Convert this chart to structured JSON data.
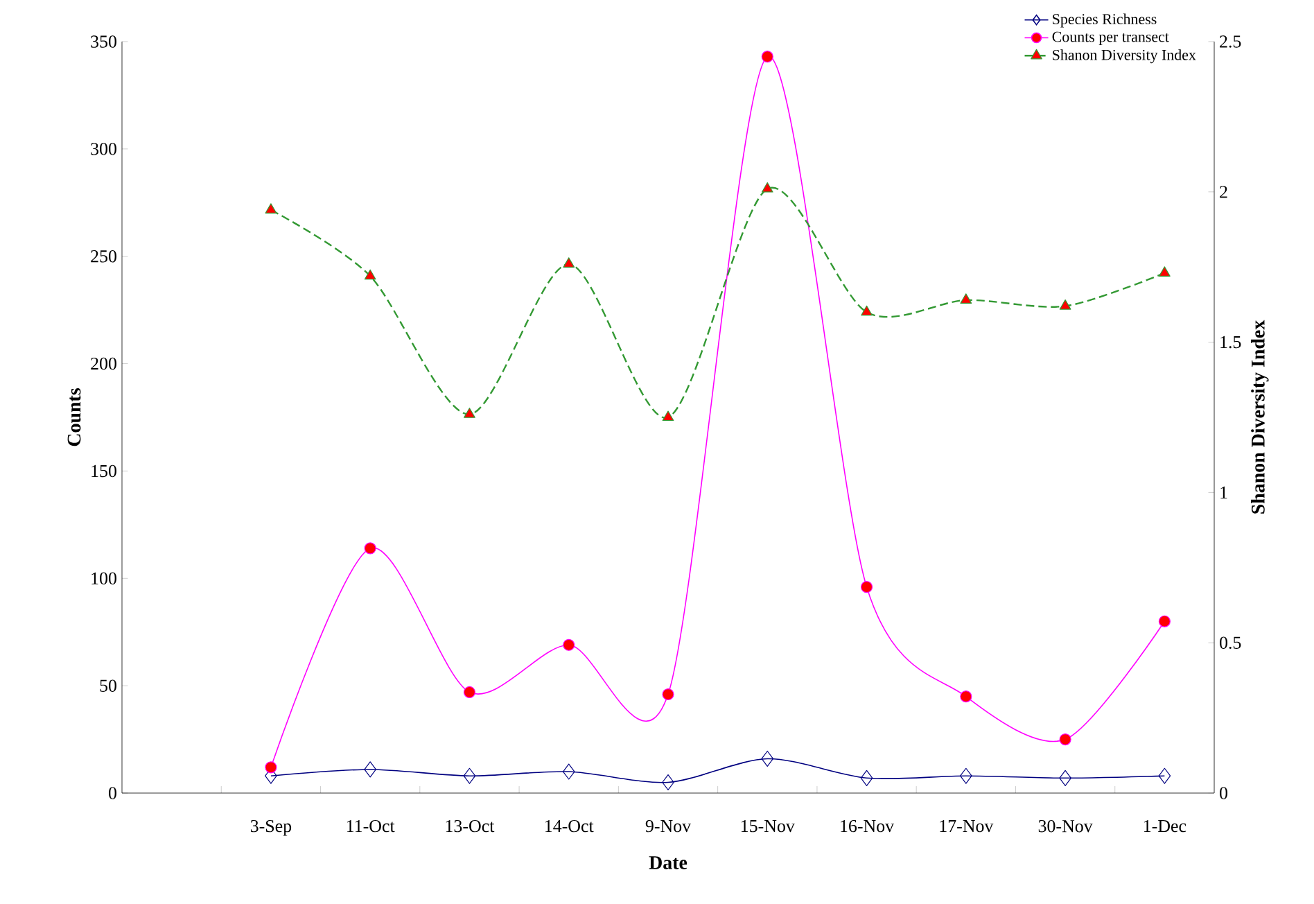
{
  "chart_data": {
    "type": "line",
    "xlabel": "Date",
    "ylabel": "Counts",
    "y2label": "Shanon Diversity Index",
    "categories": [
      null,
      "3-Sep",
      "11-Oct",
      "13-Oct",
      "14-Oct",
      "9-Nov",
      "15-Nov",
      "16-Nov",
      "17-Nov",
      "30-Nov",
      "1-Dec"
    ],
    "series": [
      {
        "name": "Species Richness",
        "color": "#000080",
        "marker": "diamond",
        "line_style": "solid",
        "values": [
          null,
          8,
          11,
          8,
          10,
          5,
          16,
          7,
          8,
          7,
          8
        ]
      },
      {
        "name": "Counts per transect",
        "color": "#ff00ff",
        "marker": "circle",
        "line_style": "solid",
        "values": [
          null,
          12,
          114,
          47,
          69,
          46,
          343,
          96,
          45,
          25,
          80
        ]
      },
      {
        "name": "Shanon  Diversity Index",
        "color": "#339933",
        "marker": "triangle",
        "line_style": "dashed",
        "axis": "y2",
        "values": [
          null,
          1.94,
          1.72,
          1.26,
          1.76,
          1.25,
          2.01,
          1.6,
          1.64,
          1.62,
          1.73
        ]
      }
    ],
    "ylim": [
      0,
      350
    ],
    "yticks": [
      0,
      50,
      100,
      150,
      200,
      250,
      300,
      350
    ],
    "y2lim": [
      0,
      2.5
    ],
    "y2ticks": [
      0,
      0.5,
      1,
      1.5,
      2,
      2.5
    ],
    "grid": false,
    "legend": "top right"
  }
}
